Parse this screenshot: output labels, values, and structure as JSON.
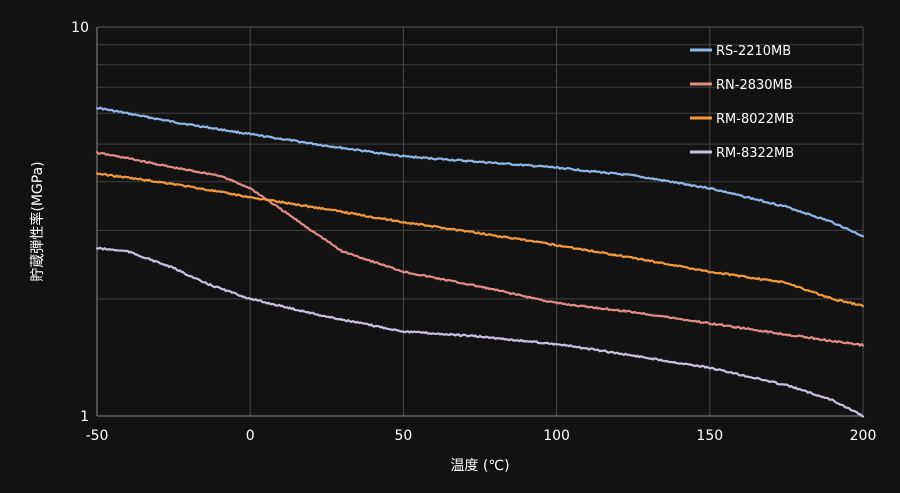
{
  "chart_data": {
    "type": "line",
    "xlabel": "温度 (℃)",
    "ylabel": "貯蔵弾性率(MGPa)",
    "x_ticks": [
      "-50",
      "0",
      "50",
      "100",
      "150",
      "200"
    ],
    "y_ticks": [
      "1",
      "10"
    ],
    "xlim": [
      -50,
      200
    ],
    "ylim": [
      1,
      10
    ],
    "y_scale": "log",
    "grid": true,
    "legend_position": "top-right",
    "series": [
      {
        "name": "RS-2210MB",
        "color": "#8fb6ea",
        "x": [
          -50,
          -25,
          0,
          25,
          50,
          75,
          100,
          125,
          150,
          175,
          190,
          200
        ],
        "y": [
          6.2,
          5.7,
          5.3,
          4.95,
          4.65,
          4.5,
          4.35,
          4.15,
          3.85,
          3.45,
          3.15,
          2.9
        ]
      },
      {
        "name": "RN-2830MB",
        "color": "#e48a87",
        "x": [
          -50,
          -40,
          -25,
          -10,
          0,
          10,
          20,
          30,
          50,
          75,
          100,
          125,
          150,
          175,
          200
        ],
        "y": [
          4.75,
          4.6,
          4.35,
          4.15,
          3.85,
          3.4,
          3.0,
          2.65,
          2.35,
          2.15,
          1.95,
          1.85,
          1.73,
          1.62,
          1.52
        ]
      },
      {
        "name": "RM-8022MB",
        "color": "#f3993d",
        "x": [
          -50,
          -25,
          0,
          25,
          50,
          75,
          100,
          125,
          150,
          175,
          190,
          200
        ],
        "y": [
          4.2,
          3.95,
          3.65,
          3.4,
          3.15,
          2.95,
          2.75,
          2.55,
          2.35,
          2.2,
          2.0,
          1.92
        ]
      },
      {
        "name": "RM-8322MB",
        "color": "#cbc0e0",
        "x": [
          -50,
          -40,
          -25,
          -15,
          0,
          25,
          50,
          75,
          100,
          125,
          150,
          175,
          190,
          200
        ],
        "y": [
          2.7,
          2.65,
          2.4,
          2.2,
          2.0,
          1.8,
          1.65,
          1.6,
          1.53,
          1.43,
          1.33,
          1.2,
          1.1,
          1.0
        ]
      }
    ]
  }
}
